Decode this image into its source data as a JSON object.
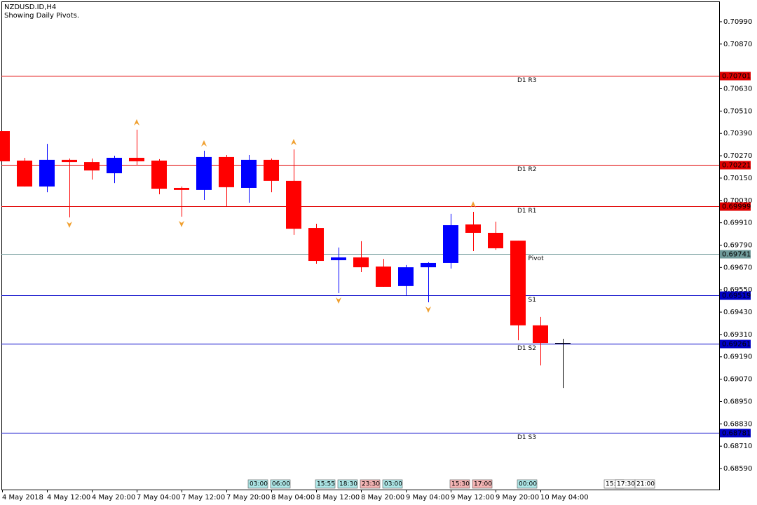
{
  "chart_data": {
    "type": "candlestick",
    "title": "NZDUSD.ID,H4",
    "subtitle": "Showing Daily Pivots.",
    "categories": [
      "4 May 2018",
      null,
      "4 May 12:00",
      null,
      "4 May 20:00",
      null,
      "7 May 04:00",
      null,
      "7 May 12:00",
      null,
      "7 May 20:00",
      null,
      "8 May 04:00",
      null,
      "8 May 12:00",
      null,
      "8 May 20:00",
      null,
      "9 May 04:00",
      null,
      "9 May 12:00",
      null,
      "9 May 20:00",
      null,
      "10 May 04:00",
      null
    ],
    "open": [
      0.70402,
      0.70244,
      0.70105,
      0.70248,
      0.70236,
      0.70176,
      0.70259,
      0.70244,
      0.70097,
      0.70086,
      0.70263,
      0.70097,
      0.70248,
      0.70135,
      0.69882,
      0.69709,
      0.69724,
      0.69675,
      0.6957,
      0.69671,
      0.69694,
      0.69901,
      0.69856,
      0.69814,
      0.69359,
      0.69264
    ],
    "high": [
      0.70402,
      0.70259,
      0.70334,
      0.70255,
      0.70255,
      0.7027,
      0.7041,
      0.70252,
      0.70105,
      0.70297,
      0.70274,
      0.70274,
      0.70255,
      0.70304,
      0.69905,
      0.69777,
      0.69811,
      0.69716,
      0.69683,
      0.69698,
      0.69958,
      0.69969,
      0.69916,
      0.69814,
      0.69404,
      0.69287
    ],
    "low": [
      0.7024,
      0.70105,
      0.70074,
      0.69939,
      0.70142,
      0.70123,
      0.70218,
      0.70063,
      0.69943,
      0.70033,
      0.69999,
      0.70018,
      0.70074,
      0.69845,
      0.6969,
      0.69532,
      0.69645,
      0.69566,
      0.69521,
      0.69483,
      0.69664,
      0.69758,
      0.69765,
      0.69279,
      0.69144,
      0.69023
    ],
    "close": [
      0.7024,
      0.70105,
      0.70248,
      0.70236,
      0.70191,
      0.70259,
      0.7024,
      0.70093,
      0.70086,
      0.70263,
      0.70101,
      0.70248,
      0.70135,
      0.69878,
      0.69705,
      0.69724,
      0.69671,
      0.69566,
      0.69671,
      0.69694,
      0.69897,
      0.69856,
      0.69773,
      0.69359,
      0.69264,
      0.69264
    ],
    "up_color": "#0000ff",
    "down_color": "#ff0000",
    "doji_color": "#000000",
    "up_fractals": [
      null,
      null,
      null,
      null,
      null,
      null,
      0.7041,
      null,
      null,
      0.70297,
      null,
      null,
      null,
      0.70304,
      null,
      null,
      null,
      null,
      null,
      null,
      null,
      0.69969,
      null,
      null,
      null,
      null
    ],
    "down_fractals": [
      null,
      null,
      null,
      0.69939,
      null,
      null,
      null,
      null,
      0.69943,
      null,
      null,
      null,
      null,
      null,
      null,
      0.69532,
      null,
      null,
      null,
      0.69483,
      null,
      null,
      null,
      null,
      null,
      null
    ],
    "fractal_color": "#f0a030",
    "pivots": [
      {
        "name": "D1 R3",
        "value": 0.70701,
        "color": "#e00000"
      },
      {
        "name": "D1 R2",
        "value": 0.70221,
        "color": "#e00000"
      },
      {
        "name": "D1 R1",
        "value": 0.69999,
        "color": "#e00000"
      },
      {
        "name": "D1 Pivot",
        "value": 0.69741,
        "color": "#6f9a9a"
      },
      {
        "name": "D1 S1",
        "value": 0.69519,
        "color": "#0000c8"
      },
      {
        "name": "D1 S2",
        "value": 0.69261,
        "color": "#0000c8"
      },
      {
        "name": "D1 S3",
        "value": 0.68781,
        "color": "#0000c8"
      }
    ],
    "ylim": [
      0.68477,
      0.71099
    ],
    "yticks": [
      {
        "value": 0.7099,
        "label": "0.70990"
      },
      {
        "value": 0.7087,
        "label": "0.70870"
      },
      {
        "value": 0.7063,
        "label": "0.70630"
      },
      {
        "value": 0.7051,
        "label": "0.70510"
      },
      {
        "value": 0.7039,
        "label": "0.70390"
      },
      {
        "value": 0.7027,
        "label": "0.70270"
      },
      {
        "value": 0.7015,
        "label": "0.70150"
      },
      {
        "value": 0.7003,
        "label": "0.70030"
      },
      {
        "value": 0.6991,
        "label": "0.69910"
      },
      {
        "value": 0.6979,
        "label": "0.69790"
      },
      {
        "value": 0.6967,
        "label": "0.69670"
      },
      {
        "value": 0.6955,
        "label": "0.69550"
      },
      {
        "value": 0.6943,
        "label": "0.69430"
      },
      {
        "value": 0.6931,
        "label": "0.69310"
      },
      {
        "value": 0.6919,
        "label": "0.69190"
      },
      {
        "value": 0.6907,
        "label": "0.69070"
      },
      {
        "value": 0.6895,
        "label": "0.68950"
      },
      {
        "value": 0.6883,
        "label": "0.68830"
      },
      {
        "value": 0.6871,
        "label": "0.68710"
      },
      {
        "value": 0.6859,
        "label": "0.68590"
      }
    ],
    "time_tags": [
      {
        "label": "03:00",
        "color": "#aee8e8"
      },
      {
        "label": "06:00",
        "color": "#aee8e8"
      },
      {
        "label": "15:55",
        "color": "#aee8e8"
      },
      {
        "label": "18:30",
        "color": "#aee8e8"
      },
      {
        "label": "23:30",
        "color": "#f4b4b4"
      },
      {
        "label": "03:00",
        "color": "#aee8e8"
      },
      {
        "label": "15:30",
        "color": "#f4b4b4"
      },
      {
        "label": "17:00",
        "color": "#f4b4b4"
      },
      {
        "label": "00:00",
        "color": "#aee8e8"
      },
      {
        "label": "15:",
        "color": "#ffffff"
      },
      {
        "label": "17:30",
        "color": "#ffffff"
      },
      {
        "label": "21:00",
        "color": "#ffffff"
      }
    ]
  }
}
